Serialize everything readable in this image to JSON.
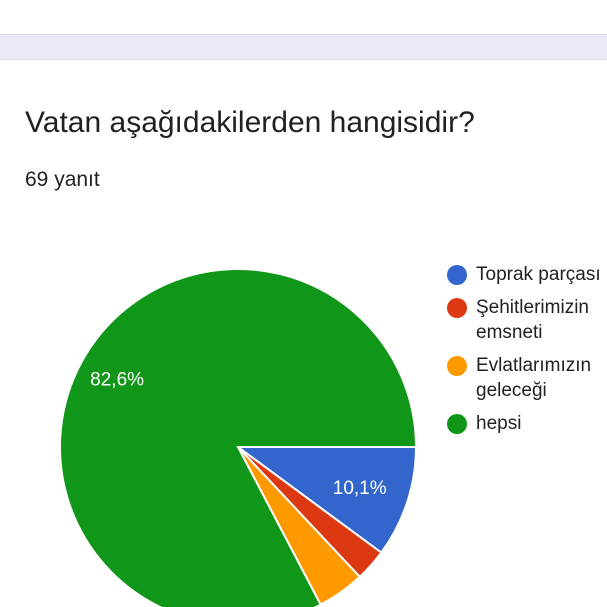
{
  "question": {
    "title": "Vatan aşağıdakilerden hangisidir?",
    "response_count": "69 yanıt"
  },
  "chart_data": {
    "type": "pie",
    "title": "",
    "total_responses": 69,
    "slices": [
      {
        "label": "Toprak parçası",
        "value": 10.1,
        "color": "#3366cc",
        "label_text": "10,1%"
      },
      {
        "label": "Şehitlerimizin emsneti",
        "value": 2.9,
        "color": "#dc3912",
        "label_text": ""
      },
      {
        "label": "Evlatlarımızın geleceği",
        "value": 4.3,
        "color": "#ff9900",
        "label_text": ""
      },
      {
        "label": "hepsi",
        "value": 82.6,
        "color": "#109618",
        "label_text": "82,6%"
      }
    ],
    "legend": {
      "placement": "right",
      "entries": [
        "Toprak parçası",
        "Şehitlerimizin\nemsneti",
        "Evlatlarımızın\ngeleceği",
        "hepsi"
      ]
    }
  },
  "theme": {
    "band_color": "#ede8f6"
  }
}
